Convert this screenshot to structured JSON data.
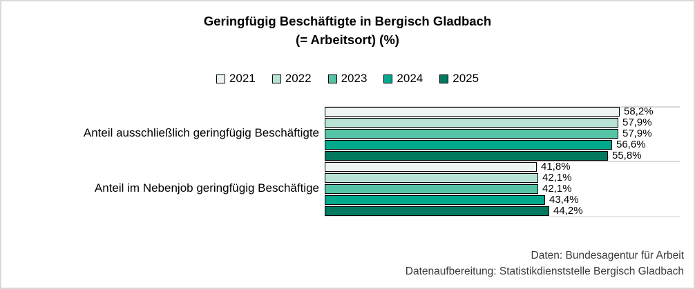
{
  "title": {
    "line1": "Geringfügig Beschäftigte in Bergisch Gladbach",
    "line2": "(= Arbeitsort) (%)"
  },
  "chart_data": {
    "type": "bar",
    "orientation": "horizontal",
    "title": "Geringfügig Beschäftigte in Bergisch Gladbach (= Arbeitsort) (%)",
    "categories": [
      "Anteil ausschließlich geringfügig Beschäftigte",
      "Anteil im Nebenjob geringfügig Beschäftige"
    ],
    "series": [
      {
        "name": "2021",
        "color": "#eef4f1",
        "values": [
          58.2,
          41.8
        ]
      },
      {
        "name": "2022",
        "color": "#b7e2d5",
        "values": [
          57.9,
          42.1
        ]
      },
      {
        "name": "2023",
        "color": "#55c3a5",
        "values": [
          57.9,
          42.1
        ]
      },
      {
        "name": "2024",
        "color": "#00a98c",
        "values": [
          56.6,
          43.4
        ]
      },
      {
        "name": "2025",
        "color": "#00795f",
        "values": [
          55.8,
          44.2
        ]
      }
    ],
    "value_labels": [
      [
        "58,2%",
        "57,9%",
        "57,9%",
        "56,6%",
        "55,8%"
      ],
      [
        "41,8%",
        "42,1%",
        "42,1%",
        "43,4%",
        "44,2%"
      ]
    ],
    "xlim": [
      0,
      70
    ],
    "xlabel": "",
    "ylabel": "",
    "grid": "category-boundary-lines",
    "gridline_color": "#d9d9d9",
    "bar_border_color": "#000000",
    "legend_position": "top"
  },
  "footer": {
    "line1": "Daten: Bundesagentur für Arbeit",
    "line2": "Datenaufbereitung: Statistikdienststelle Bergisch Gladbach"
  }
}
